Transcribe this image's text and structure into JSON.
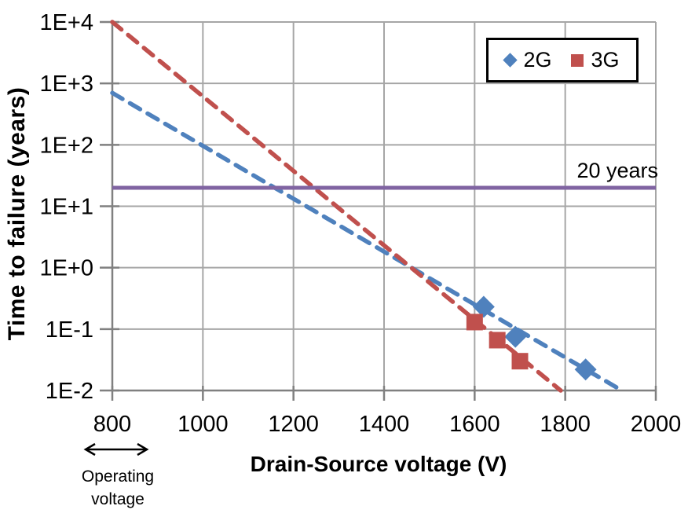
{
  "chart_data": {
    "type": "scatter",
    "title": "",
    "xlabel": "Drain-Source voltage (V)",
    "ylabel": "Time to failure (years)",
    "xlim": [
      800,
      2000
    ],
    "x_ticks": [
      800,
      1000,
      1200,
      1400,
      1600,
      1800,
      2000
    ],
    "y_scale": "log",
    "y_ticks": [
      {
        "label": "1E+4",
        "value": 10000
      },
      {
        "label": "1E+3",
        "value": 1000
      },
      {
        "label": "1E+2",
        "value": 100
      },
      {
        "label": "1E+1",
        "value": 10
      },
      {
        "label": "1E+0",
        "value": 1
      },
      {
        "label": "1E-1",
        "value": 0.1
      },
      {
        "label": "1E-2",
        "value": 0.01
      }
    ],
    "grid": true,
    "grid_color": "#A6A6A6",
    "axis_color": "#808080",
    "legend_position": "top-right",
    "series": [
      {
        "name": "2G",
        "marker": "diamond",
        "color": "#4F81BD",
        "line_style": "dashed",
        "points": [
          {
            "x": 1620,
            "y": 0.23
          },
          {
            "x": 1690,
            "y": 0.075
          },
          {
            "x": 1845,
            "y": 0.022
          }
        ],
        "trendline": {
          "x1": 800,
          "y1": 700,
          "x2": 1925,
          "y2": 0.01
        }
      },
      {
        "name": "3G",
        "marker": "square",
        "color": "#C0504D",
        "line_style": "dashed",
        "points": [
          {
            "x": 1600,
            "y": 0.13
          },
          {
            "x": 1650,
            "y": 0.066
          },
          {
            "x": 1700,
            "y": 0.03
          }
        ],
        "trendline": {
          "x1": 800,
          "y1": 10000,
          "x2": 1790,
          "y2": 0.01
        }
      }
    ],
    "reference_line": {
      "label": "20 years",
      "value": 20,
      "color": "#8064A2"
    },
    "annotation": {
      "line1": "Operating",
      "line2": "voltage",
      "x_start": 730,
      "x_end": 890
    }
  }
}
